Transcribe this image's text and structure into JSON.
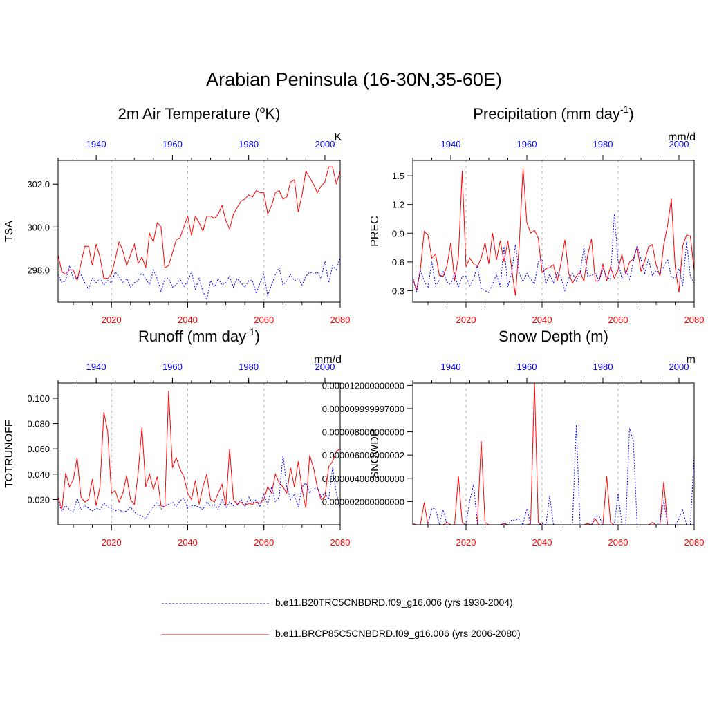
{
  "title": "Arabian Peninsula (16-30N,35-60E)",
  "colors": {
    "historical": "#0000ff",
    "future": "#ff0000",
    "axis": "#000000",
    "grid": "#aaaaaa"
  },
  "legend": [
    {
      "label": "b.e11.B20TRC5CNBDRD.f09_g16.006 (yrs 1930-2004)",
      "color": "#0000ff",
      "style": "dashed"
    },
    {
      "label": "b.e11.BRCP85C5CNBDRD.f09_g16.006 (yrs 2006-2080)",
      "color": "#ff0000",
      "style": "solid"
    }
  ],
  "chart_data": [
    {
      "type": "line",
      "title": "2m Air Temperature (",
      "title_sup": "o",
      "title_after": "K)",
      "ylabel": "TSA",
      "units": "K",
      "ylim": [
        296.5,
        303.1
      ],
      "yticks": [
        298.0,
        300.0,
        302.0
      ],
      "ytick_labels": [
        "298.0",
        "300.0",
        "302.0"
      ],
      "bottom_xlim": [
        2006,
        2080
      ],
      "bottom_xticks": [
        2020,
        2040,
        2060,
        2080
      ],
      "top_xticks": [
        1940,
        1960,
        1980,
        2000
      ],
      "series": [
        {
          "name": "b.e11.BRCP85C5CNBDRD.f09_g16.006 (yrs 2006-2080)",
          "values": [
            298.7,
            297.9,
            297.8,
            298.0,
            298.0,
            297.5,
            298.3,
            299.1,
            299.1,
            298.2,
            299.2,
            298.6,
            297.6,
            297.6,
            297.8,
            298.5,
            299.3,
            298.9,
            298.2,
            298.7,
            299.2,
            298.3,
            298.6,
            298.1,
            299.7,
            299.3,
            300.2,
            300.0,
            298.1,
            298.2,
            298.8,
            299.4,
            299.5,
            300.0,
            300.5,
            299.6,
            300.5,
            300.2,
            299.8,
            300.5,
            300.5,
            300.4,
            300.6,
            301.0,
            300.3,
            299.9,
            300.6,
            300.9,
            301.2,
            301.3,
            301.5,
            301.4,
            301.7,
            301.6,
            301.6,
            300.6,
            301.0,
            301.6,
            301.7,
            301.3,
            301.4,
            302.1,
            302.2,
            300.7,
            301.5,
            302.6,
            302.3,
            302.0,
            301.6,
            301.9,
            302.1,
            302.8,
            302.8,
            302.0,
            302.6
          ]
        },
        {
          "name": "b.e11.B20TRC5CNBDRD.f09_g16.006 (yrs 1930-2004)",
          "values": [
            297.8,
            297.4,
            297.5,
            298.2,
            297.6,
            297.6,
            297.8,
            297.4,
            297.1,
            297.6,
            297.4,
            297.6,
            297.3,
            297.5,
            297.4,
            297.9,
            297.7,
            297.4,
            297.6,
            297.2,
            297.4,
            297.5,
            297.9,
            297.6,
            297.3,
            298.0,
            297.6,
            297.0,
            297.6,
            297.6,
            297.2,
            297.3,
            297.6,
            297.2,
            297.5,
            297.9,
            297.1,
            297.6,
            297.0,
            296.6,
            297.5,
            297.2,
            297.6,
            297.3,
            297.4,
            297.7,
            297.2,
            297.6,
            297.4,
            297.2,
            297.5,
            297.5,
            296.9,
            297.4,
            297.8,
            296.8,
            297.3,
            297.8,
            298.1,
            297.3,
            297.5,
            297.8,
            297.5,
            297.6,
            297.3,
            297.7,
            297.9,
            297.8,
            297.9,
            297.6,
            298.4,
            297.4,
            298.2,
            298.0,
            298.6
          ]
        }
      ]
    },
    {
      "type": "line",
      "title": "Precipitation (mm day",
      "title_sup": "-1",
      "title_after": ")",
      "ylabel": "PREC",
      "units": "mm/d",
      "ylim": [
        0.18,
        1.66
      ],
      "yticks": [
        0.3,
        0.6,
        0.9,
        1.2,
        1.5
      ],
      "ytick_labels": [
        "0.3",
        "0.6",
        "0.9",
        "1.2",
        "1.5"
      ],
      "bottom_xlim": [
        2006,
        2080
      ],
      "bottom_xticks": [
        2020,
        2040,
        2060,
        2080
      ],
      "top_xticks": [
        1940,
        1960,
        1980,
        2000
      ],
      "series": [
        {
          "name": "b.e11.BRCP85C5CNBDRD.f09_g16.006 (yrs 2006-2080)",
          "values": [
            0.42,
            0.31,
            0.52,
            0.92,
            0.88,
            0.64,
            0.68,
            0.46,
            0.45,
            0.56,
            0.8,
            0.4,
            0.65,
            1.55,
            0.55,
            0.64,
            0.58,
            0.55,
            0.64,
            0.8,
            0.58,
            0.9,
            0.62,
            0.82,
            0.6,
            0.82,
            0.53,
            0.25,
            0.78,
            1.58,
            1.01,
            0.9,
            0.93,
            0.85,
            0.49,
            0.53,
            0.54,
            0.57,
            0.4,
            0.59,
            0.83,
            0.48,
            0.38,
            0.45,
            0.5,
            0.4,
            0.67,
            0.84,
            0.4,
            0.4,
            0.58,
            0.4,
            0.55,
            0.43,
            0.52,
            0.68,
            0.47,
            0.6,
            0.63,
            0.76,
            0.5,
            0.61,
            0.76,
            0.78,
            0.57,
            0.45,
            0.78,
            0.98,
            1.26,
            0.55,
            0.28,
            0.77,
            0.88,
            0.87,
            0.51
          ]
        },
        {
          "name": "b.e11.B20TRC5CNBDRD.f09_g16.006 (yrs 1930-2004)",
          "values": [
            0.45,
            0.28,
            0.51,
            0.4,
            0.33,
            0.6,
            0.35,
            0.41,
            0.5,
            0.39,
            0.36,
            0.48,
            0.33,
            0.45,
            0.45,
            0.35,
            0.42,
            0.56,
            0.32,
            0.3,
            0.28,
            0.37,
            0.47,
            0.34,
            0.76,
            0.34,
            0.48,
            0.78,
            0.48,
            0.39,
            0.48,
            0.42,
            0.37,
            0.6,
            0.63,
            0.37,
            0.47,
            0.38,
            0.49,
            0.44,
            0.3,
            0.43,
            0.48,
            0.4,
            0.48,
            0.75,
            0.45,
            0.46,
            0.48,
            0.4,
            0.53,
            0.44,
            0.42,
            1.1,
            0.61,
            0.42,
            0.51,
            0.42,
            0.6,
            0.77,
            0.63,
            0.48,
            0.63,
            0.46,
            0.51,
            0.47,
            0.55,
            0.63,
            0.44,
            0.43,
            0.53,
            0.35,
            0.81,
            0.45,
            0.38
          ]
        }
      ]
    },
    {
      "type": "line",
      "title": "Runoff (mm day",
      "title_sup": "-1",
      "title_after": ")",
      "ylabel": "TOTRUNOFF",
      "units": "mm/d",
      "ylim": [
        0.0,
        0.112
      ],
      "yticks": [
        0.02,
        0.04,
        0.06,
        0.08,
        0.1
      ],
      "ytick_labels": [
        "0.020",
        "0.040",
        "0.060",
        "0.080",
        "0.100"
      ],
      "bottom_xlim": [
        2006,
        2080
      ],
      "bottom_xticks": [
        2020,
        2040,
        2060,
        2080
      ],
      "top_xticks": [
        1940,
        1960,
        1980,
        2000
      ],
      "series": [
        {
          "name": "b.e11.BRCP85C5CNBDRD.f09_g16.006 (yrs 2006-2080)",
          "values": [
            0.022,
            0.012,
            0.041,
            0.03,
            0.036,
            0.053,
            0.022,
            0.018,
            0.02,
            0.036,
            0.015,
            0.03,
            0.089,
            0.074,
            0.025,
            0.027,
            0.018,
            0.025,
            0.039,
            0.02,
            0.016,
            0.041,
            0.077,
            0.03,
            0.04,
            0.028,
            0.038,
            0.015,
            0.014,
            0.106,
            0.045,
            0.053,
            0.044,
            0.038,
            0.025,
            0.02,
            0.035,
            0.016,
            0.03,
            0.04,
            0.02,
            0.018,
            0.025,
            0.032,
            0.015,
            0.06,
            0.02,
            0.016,
            0.018,
            0.015,
            0.017,
            0.016,
            0.018,
            0.017,
            0.02,
            0.03,
            0.025,
            0.04,
            0.033,
            0.03,
            0.025,
            0.045,
            0.03,
            0.05,
            0.028,
            0.013,
            0.055,
            0.045,
            0.03,
            0.02,
            0.022,
            0.046,
            0.05,
            0.058,
            0.06
          ]
        },
        {
          "name": "b.e11.B20TRC5CNBDRD.f09_g16.006 (yrs 1930-2004)",
          "values": [
            0.018,
            0.011,
            0.015,
            0.012,
            0.01,
            0.021,
            0.012,
            0.015,
            0.013,
            0.011,
            0.013,
            0.012,
            0.017,
            0.014,
            0.013,
            0.011,
            0.012,
            0.01,
            0.011,
            0.014,
            0.01,
            0.008,
            0.007,
            0.005,
            0.01,
            0.014,
            0.018,
            0.012,
            0.015,
            0.016,
            0.018,
            0.014,
            0.019,
            0.021,
            0.013,
            0.015,
            0.015,
            0.014,
            0.012,
            0.018,
            0.015,
            0.016,
            0.012,
            0.02,
            0.013,
            0.018,
            0.015,
            0.016,
            0.02,
            0.014,
            0.022,
            0.017,
            0.02,
            0.014,
            0.025,
            0.016,
            0.03,
            0.018,
            0.022,
            0.055,
            0.03,
            0.02,
            0.024,
            0.014,
            0.03,
            0.033,
            0.025,
            0.028,
            0.03,
            0.022,
            0.025,
            0.02,
            0.045,
            0.025,
            0.013
          ]
        }
      ]
    },
    {
      "type": "line",
      "title": "Snow Depth (m)",
      "title_sup": "",
      "title_after": "",
      "ylabel": "SNOWDP",
      "units": "m",
      "ylim": [
        0.0,
        1.22e-05
      ],
      "yticks": [
        2e-06,
        4e-06,
        6e-06,
        8e-06,
        1e-05,
        1.2e-05
      ],
      "ytick_labels": [
        "0.000002000000000",
        "0.000004000000000",
        "0.000006000000002",
        "0.000008000000000",
        "0.000009999997000",
        "0.000012000000000"
      ],
      "bottom_xlim": [
        2006,
        2080
      ],
      "bottom_xticks": [
        2020,
        2040,
        2060,
        2080
      ],
      "top_xticks": [
        1940,
        1960,
        1980,
        2000
      ],
      "series": [
        {
          "name": "b.e11.BRCP85C5CNBDRD.f09_g16.006 (yrs 2006-2080)",
          "values": [
            1e-07,
            0.0,
            0.0,
            1.9e-06,
            0.0,
            0.0,
            0.0,
            0.0,
            0.0,
            2e-07,
            0.0,
            0.0,
            4.2e-06,
            2e-07,
            0.0,
            0.0,
            0.0,
            0.0,
            7.2e-06,
            2e-07,
            0.0,
            0.0,
            0.0,
            0.0,
            1e-07,
            0.0,
            0.0,
            0.0,
            0.0,
            0.0,
            0.0,
            1e-07,
            1.23e-05,
            2e-07,
            0.0,
            0.0,
            0.0,
            0.0,
            0.0,
            0.0,
            0.0,
            0.0,
            0.0,
            0.0,
            0.0,
            0.0,
            1e-07,
            0.0,
            5e-07,
            0.0,
            0.0,
            4.2e-06,
            2e-07,
            0.0,
            0.0,
            0.0,
            0.0,
            0.0,
            0.0,
            0.0,
            0.0,
            0.0,
            0.0,
            2e-07,
            0.0,
            0.0,
            3.7e-06,
            0.0,
            0.0,
            0.0,
            0.0,
            0.0,
            0.0,
            0.0,
            0.0
          ]
        },
        {
          "name": "b.e11.B20TRC5CNBDRD.f09_g16.006 (yrs 1930-2004)",
          "values": [
            0.0,
            0.0,
            0.0,
            0.0,
            0.0,
            1.4e-06,
            1.4e-06,
            0.0,
            1.3e-06,
            0.0,
            0.0,
            0.0,
            0.0,
            0.0,
            0.0,
            2.1e-06,
            3.5e-06,
            0.0,
            0.0,
            0.0,
            0.0,
            0.0,
            0.0,
            0.0,
            2e-07,
            0.0,
            4e-07,
            4e-07,
            5e-07,
            0.0,
            1.4e-06,
            0.0,
            0.0,
            0.0,
            1e-07,
            0.0,
            2.5e-06,
            0.0,
            0.0,
            0.0,
            0.0,
            0.0,
            0.0,
            8.6e-06,
            0.0,
            0.0,
            0.0,
            0.0,
            8e-07,
            7e-07,
            0.0,
            0.0,
            0.0,
            0.0,
            2.7e-06,
            0.0,
            0.0,
            8.3e-06,
            7.2e-06,
            0.0,
            0.0,
            0.0,
            0.0,
            0.0,
            0.0,
            2e-07,
            2.1e-06,
            0.0,
            0.0,
            0.0,
            5e-07,
            1.3e-06,
            0.0,
            0.0,
            6e-06
          ]
        }
      ]
    }
  ]
}
